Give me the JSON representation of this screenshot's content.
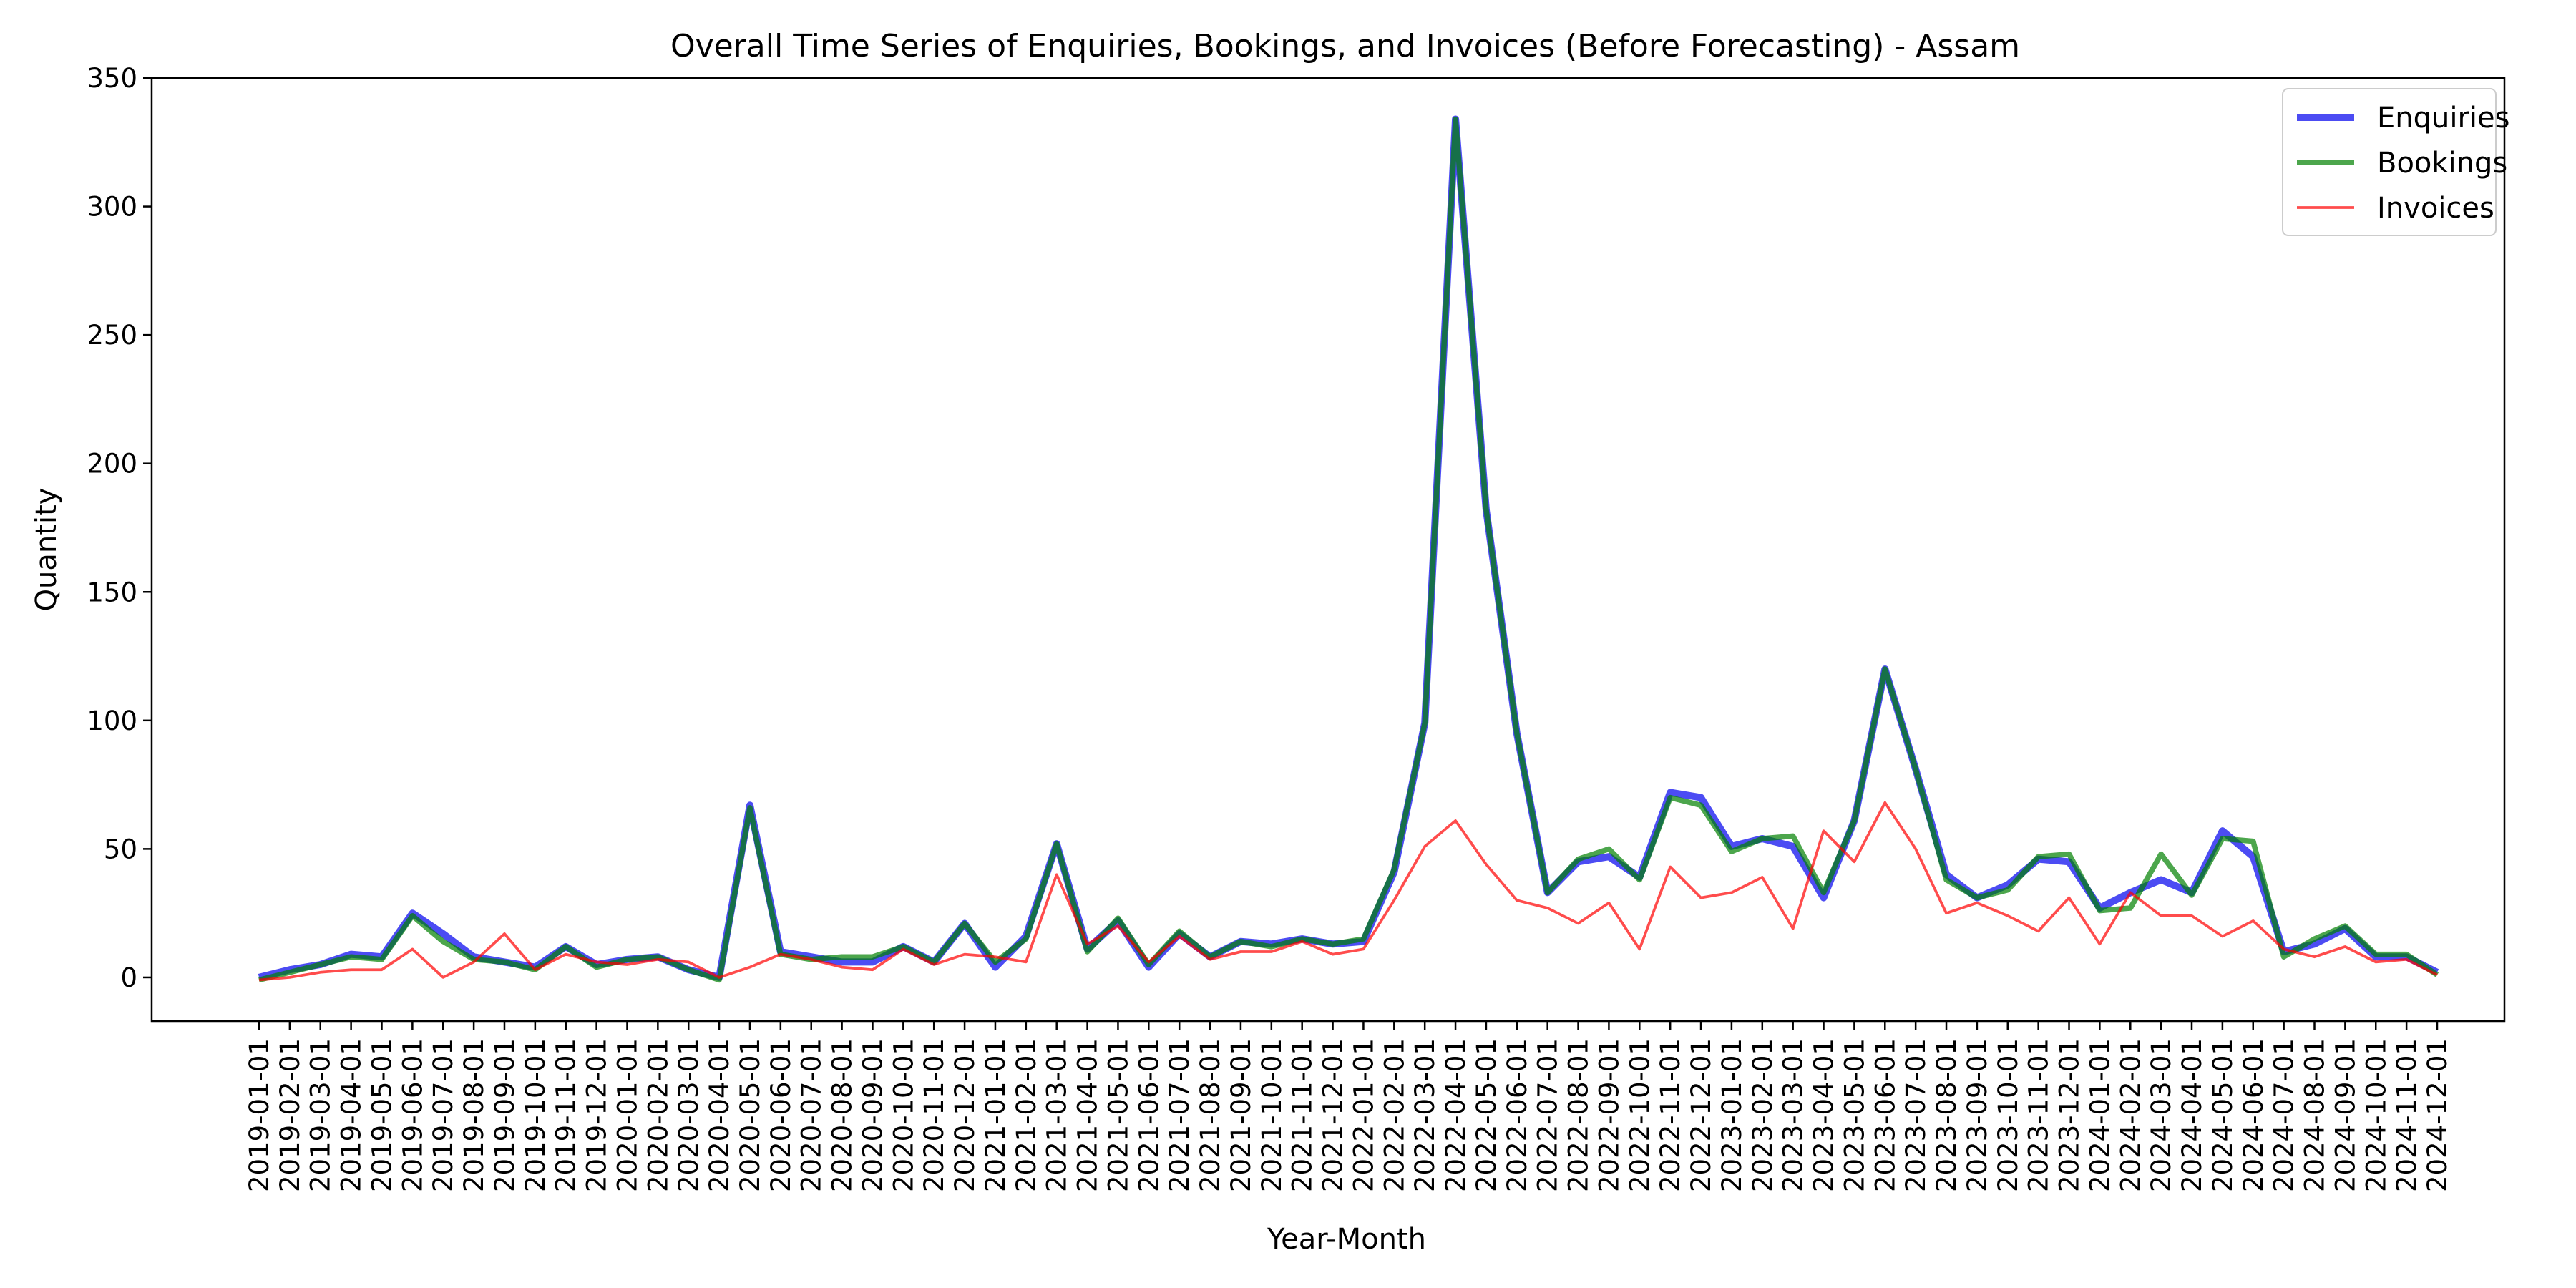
{
  "chart_data": {
    "type": "line",
    "title": "Overall Time Series of Enquiries, Bookings, and Invoices (Before Forecasting) - Assam",
    "xlabel": "Year-Month",
    "ylabel": "Quantity",
    "ylim": [
      -17,
      350
    ],
    "yticks": [
      0,
      50,
      100,
      150,
      200,
      250,
      300,
      350
    ],
    "grid": false,
    "legend_position": "top-right",
    "x": [
      "2019-01-01",
      "2019-02-01",
      "2019-03-01",
      "2019-04-01",
      "2019-05-01",
      "2019-06-01",
      "2019-07-01",
      "2019-08-01",
      "2019-09-01",
      "2019-10-01",
      "2019-11-01",
      "2019-12-01",
      "2020-01-01",
      "2020-02-01",
      "2020-03-01",
      "2020-04-01",
      "2020-05-01",
      "2020-06-01",
      "2020-07-01",
      "2020-08-01",
      "2020-09-01",
      "2020-10-01",
      "2020-11-01",
      "2020-12-01",
      "2021-01-01",
      "2021-02-01",
      "2021-03-01",
      "2021-04-01",
      "2021-05-01",
      "2021-06-01",
      "2021-07-01",
      "2021-08-01",
      "2021-09-01",
      "2021-10-01",
      "2021-11-01",
      "2021-12-01",
      "2022-01-01",
      "2022-02-01",
      "2022-03-01",
      "2022-04-01",
      "2022-05-01",
      "2022-06-01",
      "2022-07-01",
      "2022-08-01",
      "2022-09-01",
      "2022-10-01",
      "2022-11-01",
      "2022-12-01",
      "2023-01-01",
      "2023-02-01",
      "2023-03-01",
      "2023-04-01",
      "2023-05-01",
      "2023-06-01",
      "2023-07-01",
      "2023-08-01",
      "2023-09-01",
      "2023-10-01",
      "2023-11-01",
      "2023-12-01",
      "2024-01-01",
      "2024-02-01",
      "2024-03-01",
      "2024-04-01",
      "2024-05-01",
      "2024-06-01",
      "2024-07-01",
      "2024-08-01",
      "2024-09-01",
      "2024-10-01",
      "2024-11-01",
      "2024-12-01"
    ],
    "series": [
      {
        "name": "Enquiries",
        "color": "#0000ee",
        "opacity": 0.7,
        "width": 4,
        "values": [
          0,
          3,
          5,
          9,
          8,
          25,
          17,
          8,
          6,
          4,
          12,
          5,
          7,
          8,
          3,
          0,
          67,
          10,
          8,
          6,
          6,
          12,
          6,
          21,
          4,
          16,
          52,
          11,
          22,
          4,
          17,
          8,
          14,
          13,
          15,
          13,
          14,
          41,
          99,
          334,
          182,
          95,
          33,
          45,
          47,
          39,
          72,
          70,
          51,
          54,
          51,
          31,
          61,
          120,
          81,
          40,
          31,
          36,
          46,
          45,
          27,
          33,
          38,
          33,
          57,
          47,
          10,
          13,
          19,
          8,
          8,
          2
        ]
      },
      {
        "name": "Bookings",
        "color": "#008000",
        "opacity": 0.7,
        "width": 3,
        "values": [
          -1,
          2,
          5,
          8,
          7,
          24,
          14,
          7,
          6,
          3,
          12,
          4,
          7,
          8,
          3,
          -1,
          66,
          9,
          7,
          8,
          8,
          12,
          6,
          21,
          6,
          15,
          52,
          10,
          23,
          5,
          18,
          8,
          14,
          12,
          15,
          13,
          15,
          42,
          99,
          334,
          182,
          95,
          33,
          46,
          50,
          38,
          70,
          67,
          49,
          54,
          55,
          33,
          61,
          120,
          81,
          38,
          31,
          34,
          47,
          48,
          26,
          27,
          48,
          32,
          54,
          53,
          8,
          15,
          20,
          9,
          9,
          1
        ]
      },
      {
        "name": "Invoices",
        "color": "#ff0000",
        "opacity": 0.7,
        "width": 1.5,
        "values": [
          -1,
          0,
          2,
          3,
          3,
          11,
          0,
          6,
          17,
          3,
          9,
          6,
          5,
          7,
          6,
          0,
          4,
          9,
          7,
          4,
          3,
          11,
          5,
          9,
          8,
          6,
          40,
          13,
          20,
          6,
          16,
          7,
          10,
          10,
          14,
          9,
          11,
          30,
          51,
          61,
          44,
          30,
          27,
          21,
          29,
          11,
          43,
          31,
          33,
          39,
          19,
          57,
          45,
          68,
          50,
          25,
          29,
          24,
          18,
          31,
          13,
          33,
          24,
          24,
          16,
          22,
          11,
          8,
          12,
          6,
          7,
          1
        ]
      }
    ]
  }
}
